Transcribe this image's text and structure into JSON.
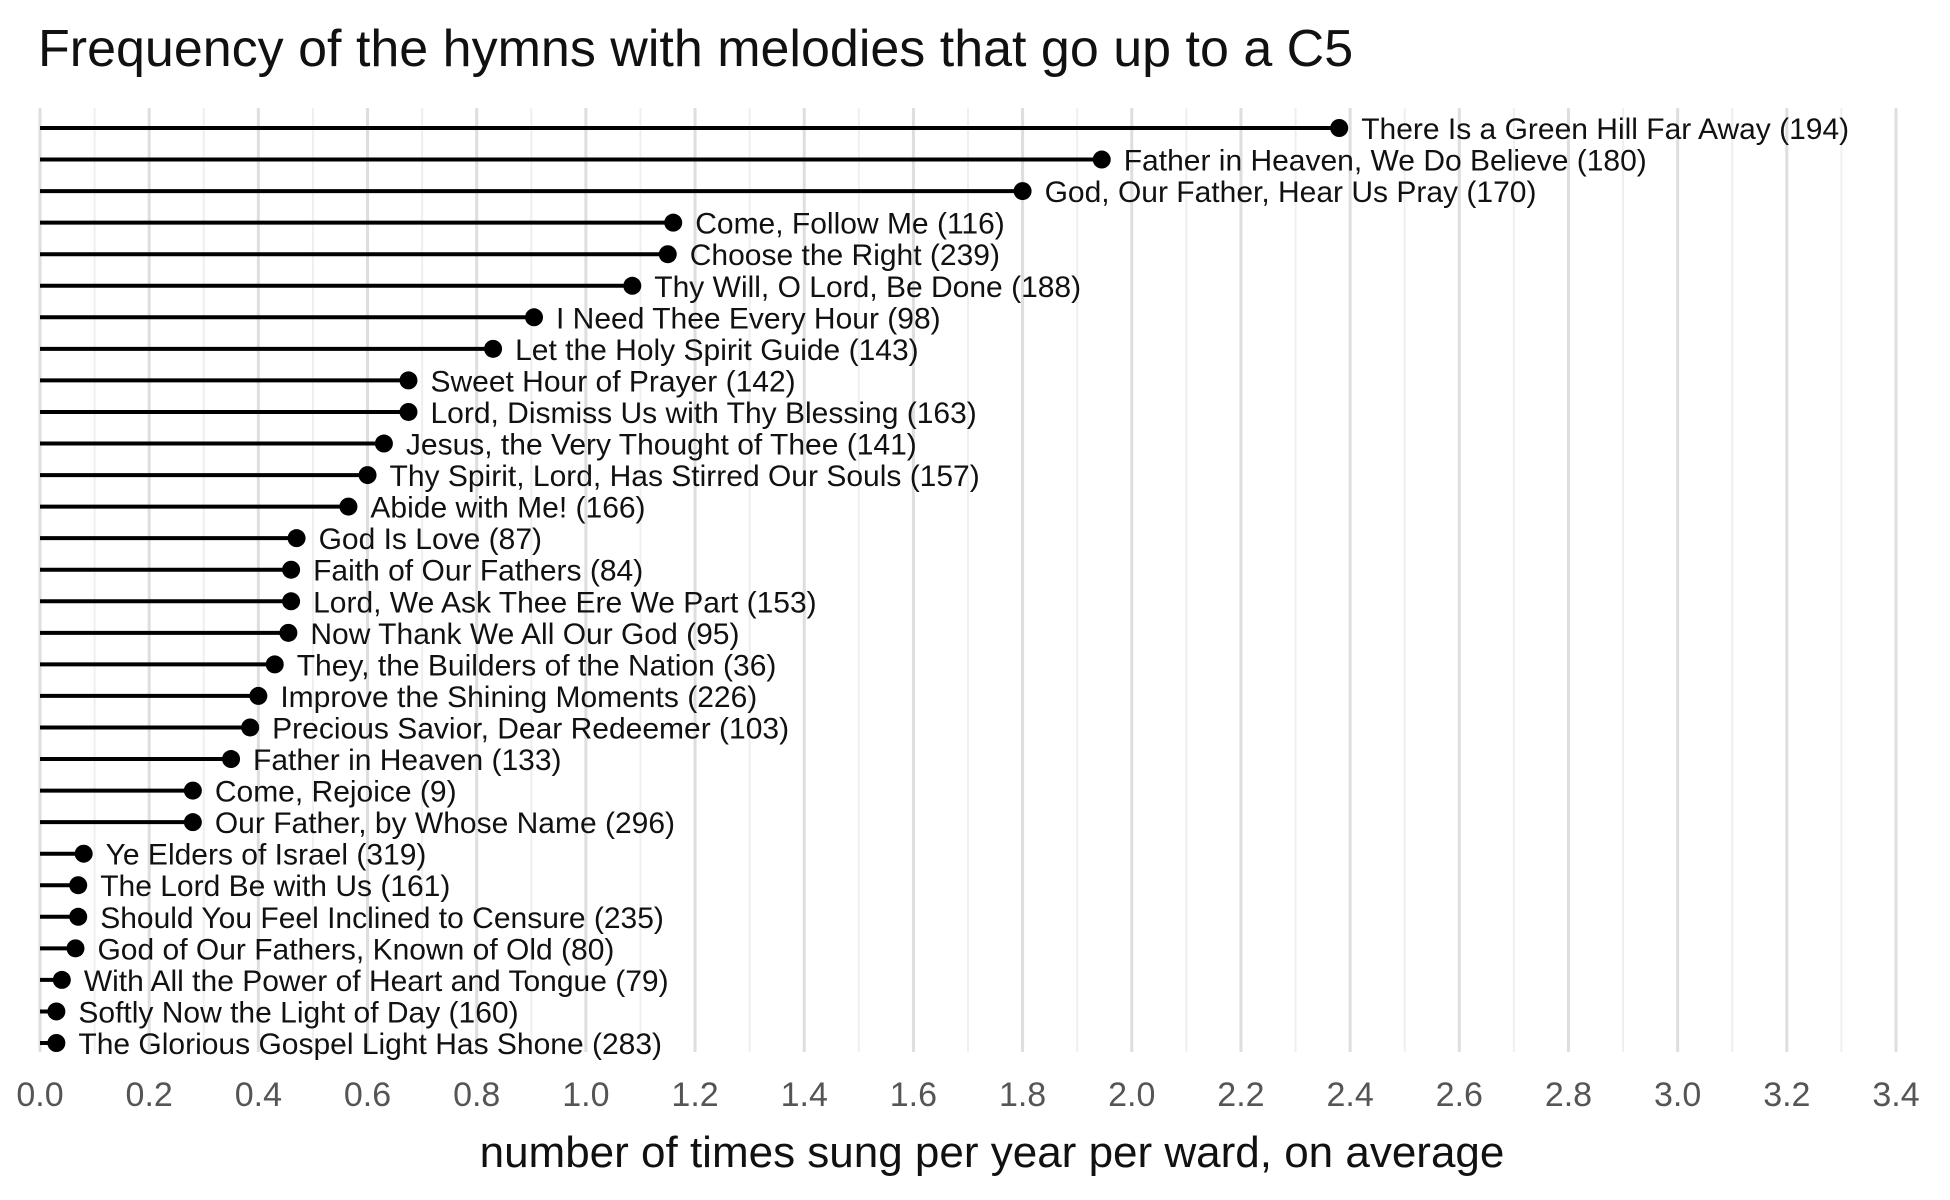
{
  "chart_data": {
    "type": "lollipop",
    "title": "Frequency of the hymns with melodies that go up to a C5",
    "xlabel": "number of times sung per year per ward, on average",
    "ylabel": "",
    "xlim": [
      0,
      3.4
    ],
    "xticks": [
      0.0,
      0.2,
      0.4,
      0.6,
      0.8,
      1.0,
      1.2,
      1.4,
      1.6,
      1.8,
      2.0,
      2.2,
      2.4,
      2.6,
      2.8,
      3.0,
      3.2,
      3.4
    ],
    "xtick_labels": [
      "0.0",
      "0.2",
      "0.4",
      "0.6",
      "0.8",
      "1.0",
      "1.2",
      "1.4",
      "1.6",
      "1.8",
      "2.0",
      "2.2",
      "2.4",
      "2.6",
      "2.8",
      "3.0",
      "3.2",
      "3.4"
    ],
    "grid": true,
    "points": [
      {
        "label": "There Is a Green Hill Far Away (194)",
        "value": 2.38
      },
      {
        "label": "Father in Heaven, We Do Believe (180)",
        "value": 1.945
      },
      {
        "label": "God, Our Father, Hear Us Pray (170)",
        "value": 1.8
      },
      {
        "label": "Come, Follow Me (116)",
        "value": 1.16
      },
      {
        "label": "Choose the Right (239)",
        "value": 1.15
      },
      {
        "label": "Thy Will, O Lord, Be Done (188)",
        "value": 1.085
      },
      {
        "label": "I Need Thee Every Hour (98)",
        "value": 0.905
      },
      {
        "label": "Let the Holy Spirit Guide (143)",
        "value": 0.83
      },
      {
        "label": "Sweet Hour of Prayer (142)",
        "value": 0.675
      },
      {
        "label": "Lord, Dismiss Us with Thy Blessing (163)",
        "value": 0.675
      },
      {
        "label": "Jesus, the Very Thought of Thee (141)",
        "value": 0.63
      },
      {
        "label": "Thy Spirit, Lord, Has Stirred Our Souls (157)",
        "value": 0.6
      },
      {
        "label": "Abide with Me! (166)",
        "value": 0.565
      },
      {
        "label": "God Is Love (87)",
        "value": 0.47
      },
      {
        "label": "Faith of Our Fathers (84)",
        "value": 0.46
      },
      {
        "label": "Lord, We Ask Thee Ere We Part (153)",
        "value": 0.46
      },
      {
        "label": "Now Thank We All Our God (95)",
        "value": 0.455
      },
      {
        "label": "They, the Builders of the Nation (36)",
        "value": 0.43
      },
      {
        "label": "Improve the Shining Moments (226)",
        "value": 0.4
      },
      {
        "label": "Precious Savior, Dear Redeemer (103)",
        "value": 0.385
      },
      {
        "label": "Father in Heaven (133)",
        "value": 0.35
      },
      {
        "label": "Come, Rejoice (9)",
        "value": 0.28
      },
      {
        "label": "Our Father, by Whose Name (296)",
        "value": 0.28
      },
      {
        "label": "Ye Elders of Israel (319)",
        "value": 0.08
      },
      {
        "label": "The Lord Be with Us (161)",
        "value": 0.07
      },
      {
        "label": "Should You Feel Inclined to Censure (235)",
        "value": 0.07
      },
      {
        "label": "God of Our Fathers, Known of Old (80)",
        "value": 0.065
      },
      {
        "label": "With All the Power of Heart and Tongue (79)",
        "value": 0.04
      },
      {
        "label": "Softly Now the Light of Day (160)",
        "value": 0.03
      },
      {
        "label": "The Glorious Gospel Light Has Shone (283)",
        "value": 0.03
      }
    ],
    "colors": {
      "stem": "#000000",
      "dot": "#000000",
      "grid_major": "#dedede",
      "grid_minor": "#efefef"
    }
  }
}
